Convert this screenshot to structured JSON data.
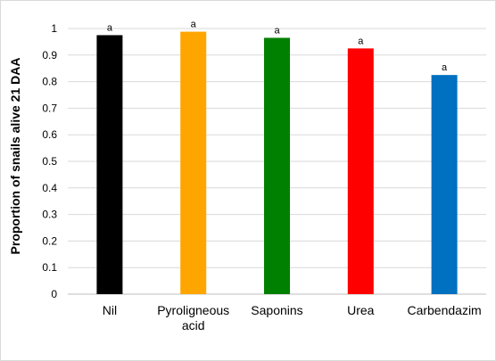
{
  "chart_data": {
    "type": "bar",
    "title": "",
    "xlabel": "",
    "ylabel": "Proportion of snails alive 21 DAA",
    "ylim": [
      0,
      1
    ],
    "yticks": [
      "0",
      "0.1",
      "0.2",
      "0.3",
      "0.4",
      "0.5",
      "0.6",
      "0.7",
      "0.8",
      "0.9",
      "1"
    ],
    "grid": true,
    "legend": "none",
    "categories": [
      [
        "Nil"
      ],
      [
        "Pyroligneous",
        "acid"
      ],
      [
        "Saponins"
      ],
      [
        "Urea"
      ],
      [
        "Carbendazim"
      ]
    ],
    "values": [
      0.975,
      0.988,
      0.965,
      0.925,
      0.825
    ],
    "bar_colors": [
      "#000000",
      "#ffa500",
      "#008000",
      "#ff0000",
      "#0070c0"
    ],
    "data_labels": [
      "a",
      "a",
      "a",
      "a",
      "a"
    ]
  }
}
